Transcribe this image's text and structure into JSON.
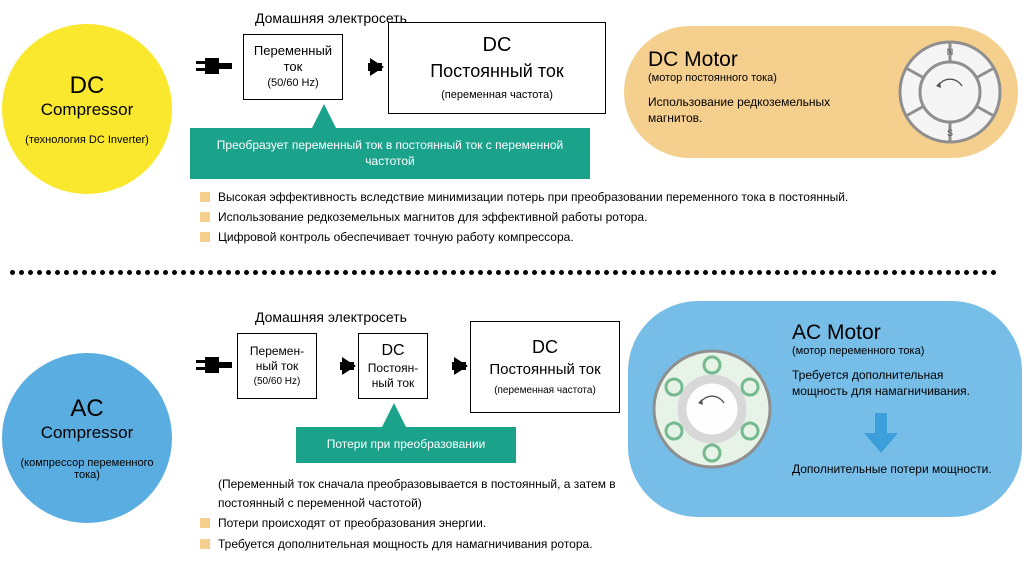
{
  "colors": {
    "dc_circle": "#f9e82e",
    "ac_circle": "#5aade0",
    "callout": "#1aa28b",
    "dc_pill": "#f4cf8e",
    "ac_pill": "#76bde8",
    "rotor_outline": "#8f8f8f",
    "rotor_fill_dc": "#f5f5f5",
    "rotor_fill_ac": "#e8f3e8",
    "bullet_sq_dc": "#f4cf8e",
    "bullet_sq_ac": "#f4cf8e",
    "arrow_blue": "#3d9fd9"
  },
  "top": {
    "header": "Домашняя электросеть",
    "compressor": {
      "title": "DC",
      "sub": "Compressor",
      "tech": "(технология DC Inverter)"
    },
    "box1": {
      "l1": "Переменный",
      "l2": "ток",
      "l3": "(50/60 Hz)"
    },
    "box2": {
      "t1": "DC",
      "t2": "Постоянный ток",
      "t3": "(переменная частота)"
    },
    "callout": "Преобразует переменный ток в постоянный ток с переменной частотой",
    "motor": {
      "title": "DC Motor",
      "sub": "(мотор постоянного тока)",
      "desc": "Использование редкоземельных магнитов."
    },
    "bullets": [
      "Высокая эффективность вследствие минимизации потерь при преобразовании переменного тока в  постоянный.",
      "Использование редкоземельных магнитов для эффективной работы ротора.",
      "Цифровой контроль обеспечивает точную работу компрессора."
    ]
  },
  "bottom": {
    "header": "Домашняя электросеть",
    "compressor": {
      "title": "AC",
      "sub": "Compressor",
      "tech": "(компрессор переменного тока)"
    },
    "box1": {
      "l1": "Перемен-",
      "l2": "ный ток",
      "l3": "(50/60 Hz)"
    },
    "box2": {
      "t1": "DC",
      "t2": "Постоян-",
      "t3": "ный ток"
    },
    "box3": {
      "t1": "DC",
      "t2": "Постоянный ток",
      "t3": "(переменная частота)"
    },
    "callout": "Потери при преобразовании",
    "motor": {
      "title": "AC Motor",
      "sub": "(мотор переменного тока)",
      "desc": "Требуется дополнительная мощность для намагничивания.",
      "extra": "Дополнительные потери мощности."
    },
    "bullets": [
      "(Переменный ток сначала преобразовывается в постоянный, а затем в постоянный с переменной частотой)",
      "Потери происходят от преобразования энергии.",
      "Требуется дополнительная мощность для намагничивания ротора."
    ]
  }
}
